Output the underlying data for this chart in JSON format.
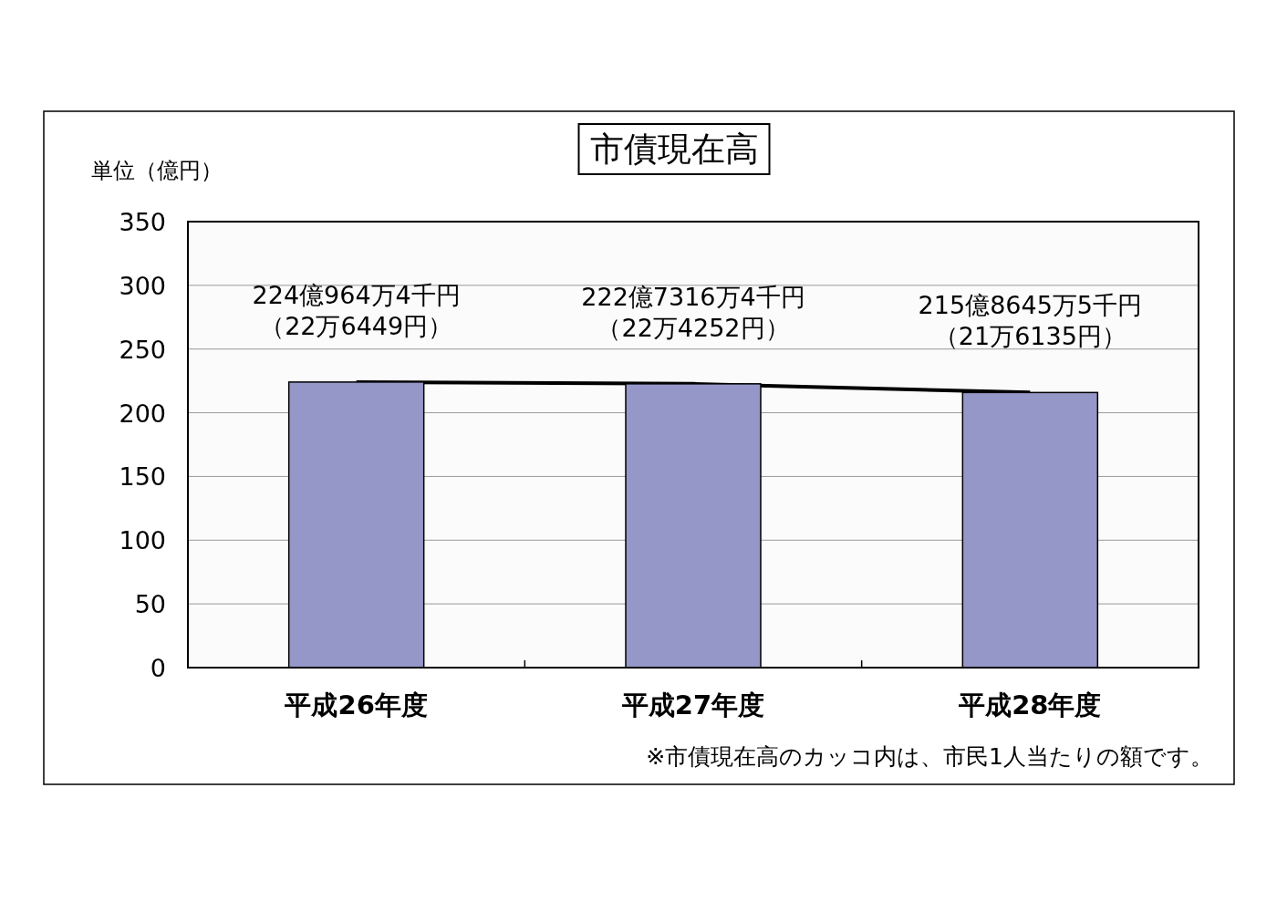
{
  "chart_data": {
    "type": "bar",
    "title": "市債現在高",
    "ylabel": "単位（億円）",
    "categories": [
      "平成26年度",
      "平成27年度",
      "平成28年度"
    ],
    "series": [
      {
        "type": "line",
        "color": "#000000",
        "values": [
          224.1,
          222.7,
          215.9
        ]
      },
      {
        "color": "#9597c9",
        "values": [
          224.1,
          222.7,
          215.9
        ]
      }
    ],
    "ylim": [
      0,
      350
    ],
    "yticks": [
      0,
      50,
      100,
      150,
      200,
      250,
      300,
      350
    ],
    "grid": "y",
    "annotations": [
      {
        "text": "224億964万4千円",
        "x": "平成26年度",
        "y": 224.1
      },
      {
        "text": "（22万6449円）",
        "x": "平成26年度",
        "y": 224.1
      },
      {
        "text": "222億7316万4千円",
        "x": "平成27年度",
        "y": 222.7
      },
      {
        "text": "（22万4252円）",
        "x": "平成27年度",
        "y": 222.7
      },
      {
        "text": "215億8645万5千円",
        "x": "平成28年度",
        "y": 215.9
      },
      {
        "text": "（21万6135円）",
        "x": "平成28年度",
        "y": 215.9
      },
      "※市債現在高のカッコ内は、市民1人当たりの額です。"
    ]
  }
}
